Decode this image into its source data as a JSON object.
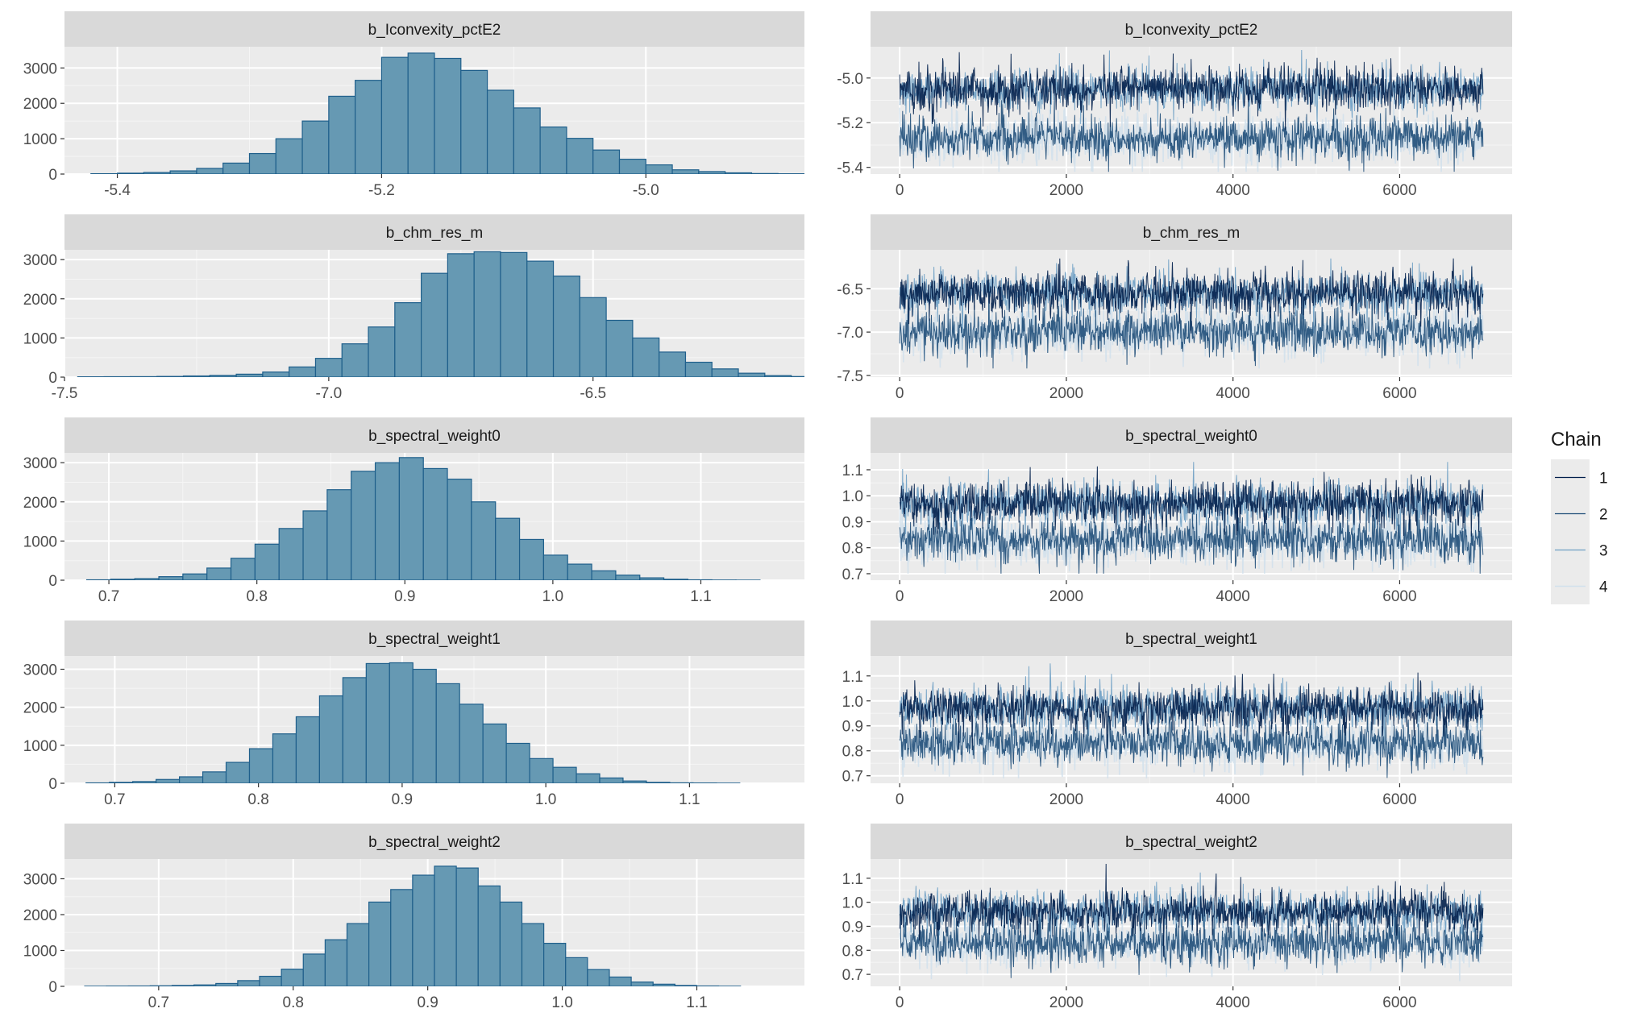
{
  "colors": {
    "panel_bg": "#ebebeb",
    "strip_bg": "#d9d9d9",
    "grid_major": "#ffffff",
    "hist_fill": "#6699b3",
    "hist_stroke": "#1f5f8b",
    "text": "#1a1a1a",
    "axis_text": "#4d4d4d",
    "chain_colors": [
      "#011f4b",
      "#1f4e79",
      "#6d9ec4",
      "#d1e1ec"
    ]
  },
  "legend": {
    "title": "Chain",
    "items": [
      "1",
      "2",
      "3",
      "4"
    ]
  },
  "chart_data": [
    {
      "type": "bar",
      "title": "b_Iconvexity_pctE2",
      "xlim": [
        -5.44,
        -4.88
      ],
      "ylim": [
        0,
        3600
      ],
      "xticks": [
        "-5.4",
        "-5.2",
        "-5.0"
      ],
      "xtick_values": [
        -5.4,
        -5.2,
        -5.0
      ],
      "yticks": [
        "0",
        "1000",
        "2000",
        "3000"
      ],
      "ytick_values": [
        0,
        1000,
        2000,
        3000
      ],
      "bin_start": -5.42,
      "bin_width": 0.02,
      "values": [
        10,
        25,
        45,
        90,
        160,
        310,
        580,
        1000,
        1500,
        2200,
        2650,
        3300,
        3420,
        3270,
        2930,
        2370,
        1870,
        1330,
        1010,
        680,
        420,
        260,
        120,
        70,
        35,
        15,
        8,
        3
      ]
    },
    {
      "type": "line",
      "title": "b_Iconvexity_pctE2",
      "xlim": [
        -350,
        7350
      ],
      "ylim": [
        -5.43,
        -4.86
      ],
      "xticks": [
        "0",
        "2000",
        "4000",
        "6000"
      ],
      "xtick_values": [
        0,
        2000,
        4000,
        6000
      ],
      "yticks": [
        "-5.4",
        "-5.2",
        "-5.0"
      ],
      "ytick_values": [
        -5.4,
        -5.2,
        -5.0
      ],
      "trace_x_max": 7000,
      "modes": [
        -5.05,
        -5.27
      ],
      "spread": 0.05,
      "min": -5.42,
      "max": -4.87,
      "series": [
        {
          "name": "1"
        },
        {
          "name": "2"
        },
        {
          "name": "3"
        },
        {
          "name": "4"
        }
      ]
    },
    {
      "type": "bar",
      "title": "b_chm_res_m",
      "xlim": [
        -7.5,
        -6.1
      ],
      "ylim": [
        0,
        3250
      ],
      "xticks": [
        "-7.5",
        "-7.0",
        "-6.5"
      ],
      "xtick_values": [
        -7.5,
        -7.0,
        -6.5
      ],
      "yticks": [
        "0",
        "1000",
        "2000",
        "3000"
      ],
      "ytick_values": [
        0,
        1000,
        2000,
        3000
      ],
      "bin_start": -7.475,
      "bin_width": 0.05,
      "values": [
        8,
        10,
        12,
        18,
        30,
        45,
        75,
        130,
        260,
        480,
        850,
        1280,
        1900,
        2650,
        3150,
        3200,
        3180,
        2960,
        2580,
        2030,
        1450,
        1000,
        640,
        380,
        210,
        100,
        40,
        15
      ]
    },
    {
      "type": "line",
      "title": "b_chm_res_m",
      "xlim": [
        -350,
        7350
      ],
      "ylim": [
        -7.52,
        -6.05
      ],
      "xticks": [
        "0",
        "2000",
        "4000",
        "6000"
      ],
      "xtick_values": [
        0,
        2000,
        4000,
        6000
      ],
      "yticks": [
        "-7.5",
        "-7.0",
        "-6.5"
      ],
      "ytick_values": [
        -7.5,
        -7.0,
        -6.5
      ],
      "trace_x_max": 7000,
      "modes": [
        -6.55,
        -7.0
      ],
      "spread": 0.13,
      "min": -7.42,
      "max": -6.15,
      "series": [
        {
          "name": "1"
        },
        {
          "name": "2"
        },
        {
          "name": "3"
        },
        {
          "name": "4"
        }
      ]
    },
    {
      "type": "bar",
      "title": "b_spectral_weight0",
      "xlim": [
        0.67,
        1.17
      ],
      "ylim": [
        0,
        3250
      ],
      "xticks": [
        "0.7",
        "0.8",
        "0.9",
        "1.0",
        "1.1"
      ],
      "xtick_values": [
        0.7,
        0.8,
        0.9,
        1.0,
        1.1
      ],
      "yticks": [
        "0",
        "1000",
        "2000",
        "3000"
      ],
      "ytick_values": [
        0,
        1000,
        2000,
        3000
      ],
      "bin_start": 0.685,
      "bin_width": 0.01625,
      "values": [
        10,
        25,
        40,
        90,
        160,
        310,
        560,
        920,
        1320,
        1770,
        2310,
        2780,
        3000,
        3130,
        2850,
        2580,
        2000,
        1580,
        1040,
        640,
        410,
        240,
        130,
        60,
        25,
        10,
        5,
        3
      ]
    },
    {
      "type": "line",
      "title": "b_spectral_weight0",
      "xlim": [
        -350,
        7350
      ],
      "ylim": [
        0.675,
        1.165
      ],
      "xticks": [
        "0",
        "2000",
        "4000",
        "6000"
      ],
      "xtick_values": [
        0,
        2000,
        4000,
        6000
      ],
      "yticks": [
        "0.7",
        "0.8",
        "0.9",
        "1.0",
        "1.1"
      ],
      "ytick_values": [
        0.7,
        0.8,
        0.9,
        1.0,
        1.1
      ],
      "trace_x_max": 7000,
      "modes": [
        0.97,
        0.83
      ],
      "spread": 0.045,
      "min": 0.7,
      "max": 1.13,
      "series": [
        {
          "name": "1"
        },
        {
          "name": "2"
        },
        {
          "name": "3"
        },
        {
          "name": "4"
        }
      ]
    },
    {
      "type": "bar",
      "title": "b_spectral_weight1",
      "xlim": [
        0.665,
        1.18
      ],
      "ylim": [
        0,
        3350
      ],
      "xticks": [
        "0.7",
        "0.8",
        "0.9",
        "1.0",
        "1.1"
      ],
      "xtick_values": [
        0.7,
        0.8,
        0.9,
        1.0,
        1.1
      ],
      "yticks": [
        "0",
        "1000",
        "2000",
        "3000"
      ],
      "ytick_values": [
        0,
        1000,
        2000,
        3000
      ],
      "bin_start": 0.68,
      "bin_width": 0.01625,
      "values": [
        10,
        25,
        45,
        100,
        170,
        300,
        550,
        910,
        1300,
        1750,
        2300,
        2780,
        3150,
        3170,
        3000,
        2620,
        2080,
        1560,
        1050,
        650,
        420,
        250,
        140,
        60,
        25,
        12,
        8,
        5
      ]
    },
    {
      "type": "line",
      "title": "b_spectral_weight1",
      "xlim": [
        -350,
        7350
      ],
      "ylim": [
        0.67,
        1.18
      ],
      "xticks": [
        "0",
        "2000",
        "4000",
        "6000"
      ],
      "xtick_values": [
        0,
        2000,
        4000,
        6000
      ],
      "yticks": [
        "0.7",
        "0.8",
        "0.9",
        "1.0",
        "1.1"
      ],
      "ytick_values": [
        0.7,
        0.8,
        0.9,
        1.0,
        1.1
      ],
      "trace_x_max": 7000,
      "modes": [
        0.97,
        0.83
      ],
      "spread": 0.045,
      "min": 0.69,
      "max": 1.15,
      "series": [
        {
          "name": "1"
        },
        {
          "name": "2"
        },
        {
          "name": "3"
        },
        {
          "name": "4"
        }
      ]
    },
    {
      "type": "bar",
      "title": "b_spectral_weight2",
      "xlim": [
        0.63,
        1.18
      ],
      "ylim": [
        0,
        3550
      ],
      "xticks": [
        "0.7",
        "0.8",
        "0.9",
        "1.0",
        "1.1"
      ],
      "xtick_values": [
        0.7,
        0.8,
        0.9,
        1.0,
        1.1
      ],
      "yticks": [
        "0",
        "1000",
        "2000",
        "3000"
      ],
      "ytick_values": [
        0,
        1000,
        2000,
        3000
      ],
      "bin_start": 0.645,
      "bin_width": 0.01625,
      "values": [
        5,
        8,
        10,
        15,
        25,
        40,
        80,
        160,
        280,
        480,
        900,
        1300,
        1750,
        2350,
        2700,
        3100,
        3350,
        3300,
        2800,
        2350,
        1750,
        1200,
        800,
        470,
        260,
        120,
        60,
        25,
        10,
        5
      ]
    },
    {
      "type": "line",
      "title": "b_spectral_weight2",
      "xlim": [
        -350,
        7350
      ],
      "ylim": [
        0.65,
        1.18
      ],
      "xticks": [
        "0",
        "2000",
        "4000",
        "6000"
      ],
      "xtick_values": [
        0,
        2000,
        4000,
        6000
      ],
      "yticks": [
        "0.7",
        "0.8",
        "0.9",
        "1.0",
        "1.1"
      ],
      "ytick_values": [
        0.7,
        0.8,
        0.9,
        1.0,
        1.1
      ],
      "trace_x_max": 7000,
      "modes": [
        0.96,
        0.83
      ],
      "spread": 0.045,
      "min": 0.66,
      "max": 1.16,
      "series": [
        {
          "name": "1"
        },
        {
          "name": "2"
        },
        {
          "name": "3"
        },
        {
          "name": "4"
        }
      ]
    }
  ]
}
